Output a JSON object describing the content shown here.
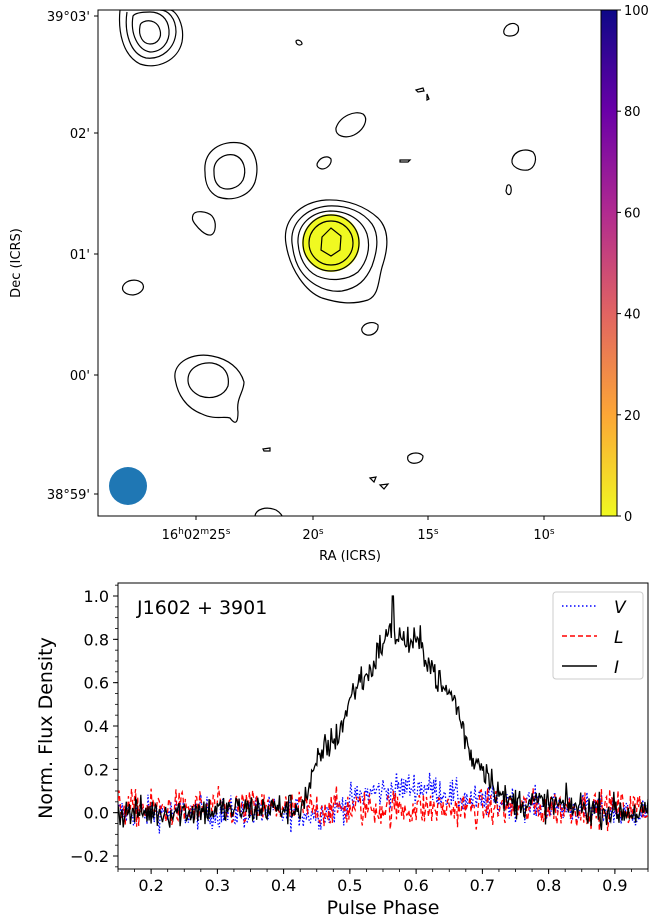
{
  "chart_data": [
    {
      "type": "contour",
      "xlabel": "RA (ICRS)",
      "ylabel": "Dec (ICRS)",
      "x_ticks": [
        {
          "h": "16",
          "m": "02",
          "s": "25"
        },
        {
          "s": "20"
        },
        {
          "s": "15"
        },
        {
          "s": "10"
        }
      ],
      "y_ticks": [
        {
          "d": "39°03'",
          "v": 3
        },
        {
          "d": "02'",
          "v": 2
        },
        {
          "d": "01'",
          "v": 1
        },
        {
          "d": "00'",
          "v": 0
        },
        {
          "d": "38°59'",
          "v": -1
        }
      ],
      "colorbar": {
        "colormap": "plasma (reversed)",
        "range": [
          0,
          100
        ],
        "ticks": [
          "0",
          "20",
          "40",
          "60",
          "80",
          "100"
        ]
      },
      "source": {
        "ra_s": 19.1,
        "dec_min": 1.1,
        "peak_color": "#f0f921"
      },
      "beam_color": "#1f77b4",
      "contour_color": "#000000"
    },
    {
      "type": "line",
      "annotation": "J1602 + 3901",
      "xlabel": "Pulse Phase",
      "ylabel": "Norm.  Flux Density",
      "xlim": [
        0.15,
        0.95
      ],
      "ylim": [
        -0.26,
        1.06
      ],
      "x_ticks": [
        "0.2",
        "0.3",
        "0.4",
        "0.5",
        "0.6",
        "0.7",
        "0.8",
        "0.9"
      ],
      "y_ticks": [
        "−0.2",
        "0.0",
        "0.2",
        "0.4",
        "0.6",
        "0.8",
        "1.0"
      ],
      "legend_position": "top-right",
      "series": [
        {
          "name": "V",
          "color": "#0000ff",
          "style": "dotted",
          "profile": [
            [
              0.15,
              0.0
            ],
            [
              0.45,
              0.0
            ],
            [
              0.55,
              0.1
            ],
            [
              0.6,
              0.12
            ],
            [
              0.7,
              0.05
            ],
            [
              0.95,
              0.0
            ]
          ],
          "noise": 0.07
        },
        {
          "name": "L",
          "color": "#ff0000",
          "style": "dashed",
          "profile": [
            [
              0.15,
              0.02
            ],
            [
              0.95,
              0.02
            ]
          ],
          "noise": 0.08
        },
        {
          "name": "I",
          "color": "#000000",
          "style": "solid",
          "profile": [
            [
              0.15,
              0.0
            ],
            [
              0.42,
              0.02
            ],
            [
              0.47,
              0.32
            ],
            [
              0.52,
              0.62
            ],
            [
              0.56,
              0.82
            ],
            [
              0.6,
              0.78
            ],
            [
              0.65,
              0.55
            ],
            [
              0.69,
              0.24
            ],
            [
              0.74,
              0.05
            ],
            [
              0.95,
              0.0
            ]
          ],
          "noise": 0.07
        }
      ]
    }
  ]
}
